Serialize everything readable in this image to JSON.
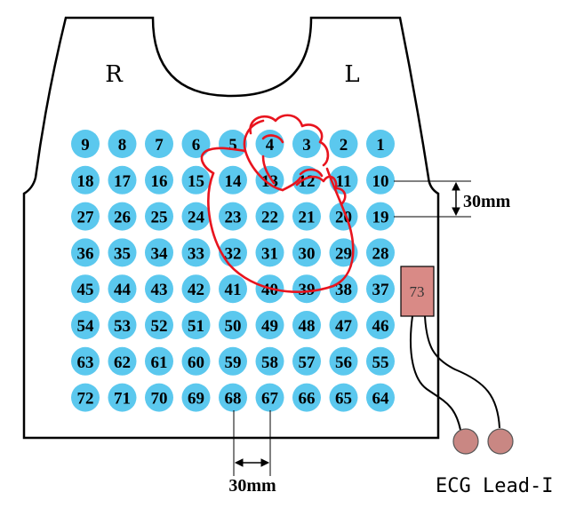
{
  "labels": {
    "right": "R",
    "left": "L",
    "row_spacing": "30mm",
    "column_spacing": "30mm",
    "box": "73",
    "caption": "ECG Lead-I"
  },
  "electrodes": [
    [
      9,
      8,
      7,
      6,
      5,
      4,
      3,
      2,
      1
    ],
    [
      18,
      17,
      16,
      15,
      14,
      13,
      12,
      11,
      10
    ],
    [
      27,
      26,
      25,
      24,
      23,
      22,
      21,
      20,
      19
    ],
    [
      36,
      35,
      34,
      33,
      32,
      31,
      30,
      29,
      28
    ],
    [
      45,
      44,
      43,
      42,
      41,
      40,
      39,
      38,
      37
    ],
    [
      54,
      53,
      52,
      51,
      50,
      49,
      48,
      47,
      46
    ],
    [
      63,
      62,
      61,
      60,
      59,
      58,
      57,
      56,
      55
    ],
    [
      72,
      71,
      70,
      69,
      68,
      67,
      66,
      65,
      64
    ]
  ],
  "colors": {
    "electrode": "#5bc8ee",
    "heart": "#e8141e",
    "box_fill": "#d98a86",
    "lead": "#c98783"
  }
}
